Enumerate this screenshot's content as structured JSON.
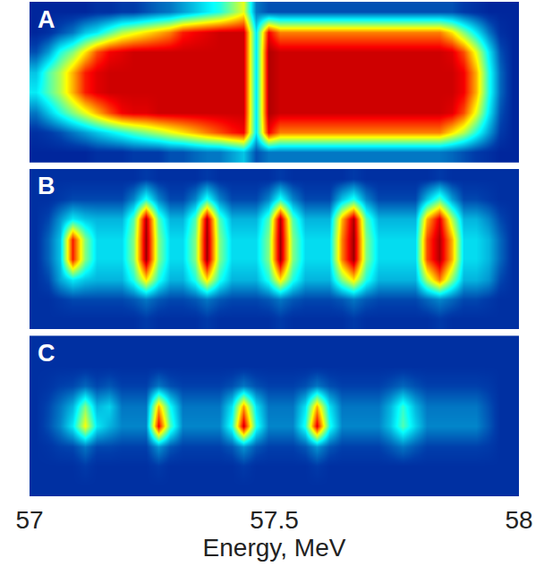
{
  "chart_data": [
    {
      "type": "heatmap",
      "title": "A",
      "x": [
        57.0125,
        57.0375,
        57.0625,
        57.0875,
        57.1125,
        57.1375,
        57.1625,
        57.1875,
        57.2125,
        57.2375,
        57.2625,
        57.2875,
        57.3125,
        57.3375,
        57.3625,
        57.3875,
        57.4125,
        57.4375,
        57.4625,
        57.4875,
        57.5125,
        57.5375,
        57.5625,
        57.5875,
        57.6125,
        57.6375,
        57.6625,
        57.6875,
        57.7125,
        57.7375,
        57.7625,
        57.7875,
        57.8125,
        57.8375,
        57.8625,
        57.8875,
        57.9125,
        57.9375,
        57.9625,
        57.9875
      ],
      "y": [
        0,
        1,
        2,
        3,
        4,
        5,
        6,
        7
      ],
      "z": [
        [
          8,
          10,
          20,
          35,
          30,
          15,
          8,
          8
        ],
        [
          8,
          12,
          30,
          45,
          45,
          25,
          10,
          8
        ],
        [
          8,
          15,
          40,
          55,
          55,
          40,
          15,
          8
        ],
        [
          8,
          20,
          50,
          70,
          70,
          50,
          20,
          8
        ],
        [
          8,
          25,
          60,
          85,
          85,
          65,
          30,
          8
        ],
        [
          10,
          30,
          70,
          90,
          90,
          80,
          35,
          10
        ],
        [
          10,
          35,
          80,
          92,
          92,
          88,
          45,
          10
        ],
        [
          10,
          40,
          88,
          92,
          92,
          90,
          55,
          12
        ],
        [
          12,
          45,
          90,
          92,
          92,
          92,
          60,
          12
        ],
        [
          12,
          50,
          90,
          92,
          92,
          92,
          65,
          15
        ],
        [
          12,
          55,
          92,
          92,
          92,
          92,
          70,
          18
        ],
        [
          15,
          60,
          92,
          92,
          92,
          92,
          75,
          20
        ],
        [
          15,
          65,
          92,
          92,
          92,
          92,
          85,
          25
        ],
        [
          18,
          70,
          92,
          92,
          92,
          92,
          88,
          30
        ],
        [
          20,
          75,
          92,
          92,
          92,
          92,
          90,
          35
        ],
        [
          20,
          80,
          92,
          92,
          92,
          92,
          92,
          40
        ],
        [
          25,
          85,
          92,
          92,
          92,
          92,
          92,
          50
        ],
        [
          30,
          88,
          92,
          92,
          92,
          92,
          92,
          60
        ],
        [
          15,
          35,
          35,
          35,
          35,
          35,
          35,
          20
        ],
        [
          20,
          88,
          95,
          95,
          95,
          95,
          88,
          15
        ],
        [
          20,
          75,
          92,
          92,
          92,
          92,
          75,
          15
        ],
        [
          20,
          75,
          92,
          92,
          92,
          92,
          75,
          15
        ],
        [
          20,
          75,
          92,
          92,
          92,
          92,
          75,
          15
        ],
        [
          20,
          75,
          92,
          92,
          92,
          92,
          75,
          15
        ],
        [
          20,
          75,
          92,
          92,
          92,
          92,
          75,
          15
        ],
        [
          20,
          75,
          92,
          92,
          92,
          92,
          75,
          15
        ],
        [
          20,
          75,
          92,
          92,
          92,
          92,
          75,
          15
        ],
        [
          20,
          75,
          92,
          92,
          92,
          92,
          75,
          15
        ],
        [
          20,
          75,
          92,
          92,
          92,
          92,
          75,
          15
        ],
        [
          20,
          75,
          92,
          92,
          92,
          92,
          75,
          15
        ],
        [
          20,
          75,
          92,
          92,
          92,
          92,
          75,
          15
        ],
        [
          20,
          75,
          92,
          92,
          92,
          92,
          75,
          15
        ],
        [
          20,
          75,
          92,
          92,
          92,
          92,
          75,
          15
        ],
        [
          20,
          75,
          92,
          92,
          92,
          92,
          75,
          15
        ],
        [
          18,
          65,
          90,
          92,
          92,
          90,
          65,
          15
        ],
        [
          15,
          55,
          80,
          88,
          88,
          80,
          50,
          12
        ],
        [
          12,
          40,
          60,
          70,
          70,
          60,
          35,
          10
        ],
        [
          10,
          25,
          35,
          40,
          40,
          35,
          20,
          8
        ],
        [
          8,
          12,
          15,
          18,
          18,
          15,
          10,
          8
        ],
        [
          8,
          8,
          8,
          8,
          8,
          8,
          8,
          8
        ]
      ],
      "zlim": [
        0,
        100
      ],
      "xlim": [
        57,
        58
      ],
      "ylim": [
        -0.5,
        7.5
      ],
      "tick_labels": false
    },
    {
      "type": "heatmap",
      "title": "B",
      "x": [
        57.0125,
        57.0375,
        57.0625,
        57.0875,
        57.1125,
        57.1375,
        57.1625,
        57.1875,
        57.2125,
        57.2375,
        57.2625,
        57.2875,
        57.3125,
        57.3375,
        57.3625,
        57.3875,
        57.4125,
        57.4375,
        57.4625,
        57.4875,
        57.5125,
        57.5375,
        57.5625,
        57.5875,
        57.6125,
        57.6375,
        57.6625,
        57.6875,
        57.7125,
        57.7375,
        57.7625,
        57.7875,
        57.8125,
        57.8375,
        57.8625,
        57.8875,
        57.9125,
        57.9375,
        57.9625,
        57.9875
      ],
      "y": [
        0,
        1,
        2,
        3,
        4,
        5,
        6,
        7
      ],
      "z": [
        [
          10,
          10,
          10,
          10,
          10,
          10,
          10,
          10
        ],
        [
          10,
          10,
          14,
          18,
          18,
          14,
          10,
          10
        ],
        [
          10,
          12,
          26,
          30,
          30,
          24,
          12,
          10
        ],
        [
          10,
          14,
          35,
          85,
          85,
          35,
          14,
          10
        ],
        [
          10,
          14,
          30,
          50,
          50,
          30,
          14,
          10
        ],
        [
          10,
          14,
          28,
          33,
          33,
          28,
          14,
          10
        ],
        [
          10,
          14,
          28,
          33,
          33,
          28,
          14,
          10
        ],
        [
          10,
          14,
          28,
          33,
          33,
          28,
          14,
          10
        ],
        [
          10,
          16,
          40,
          50,
          50,
          45,
          22,
          10
        ],
        [
          12,
          20,
          65,
          97,
          97,
          95,
          40,
          12
        ],
        [
          10,
          16,
          40,
          50,
          50,
          45,
          22,
          10
        ],
        [
          10,
          14,
          28,
          33,
          33,
          28,
          14,
          10
        ],
        [
          10,
          14,
          28,
          33,
          33,
          28,
          14,
          10
        ],
        [
          10,
          16,
          40,
          50,
          50,
          45,
          22,
          10
        ],
        [
          12,
          20,
          65,
          97,
          97,
          95,
          40,
          12
        ],
        [
          10,
          16,
          40,
          50,
          50,
          45,
          22,
          10
        ],
        [
          10,
          14,
          28,
          33,
          33,
          28,
          14,
          10
        ],
        [
          10,
          14,
          28,
          33,
          33,
          28,
          14,
          10
        ],
        [
          10,
          14,
          28,
          33,
          33,
          28,
          14,
          10
        ],
        [
          10,
          16,
          40,
          50,
          50,
          45,
          22,
          10
        ],
        [
          12,
          20,
          65,
          97,
          97,
          95,
          40,
          12
        ],
        [
          10,
          16,
          40,
          50,
          50,
          45,
          22,
          10
        ],
        [
          10,
          14,
          28,
          33,
          33,
          28,
          14,
          10
        ],
        [
          10,
          14,
          28,
          33,
          33,
          28,
          14,
          10
        ],
        [
          10,
          14,
          28,
          33,
          33,
          28,
          14,
          10
        ],
        [
          10,
          16,
          50,
          75,
          75,
          70,
          30,
          10
        ],
        [
          12,
          20,
          65,
          97,
          97,
          95,
          40,
          12
        ],
        [
          10,
          16,
          40,
          50,
          50,
          45,
          22,
          10
        ],
        [
          10,
          14,
          28,
          33,
          33,
          28,
          14,
          10
        ],
        [
          10,
          14,
          28,
          33,
          33,
          28,
          14,
          10
        ],
        [
          10,
          14,
          28,
          33,
          33,
          28,
          14,
          10
        ],
        [
          10,
          14,
          28,
          33,
          33,
          28,
          14,
          10
        ],
        [
          10,
          18,
          55,
          80,
          80,
          70,
          30,
          10
        ],
        [
          12,
          22,
          75,
          95,
          95,
          90,
          45,
          12
        ],
        [
          10,
          18,
          50,
          70,
          70,
          55,
          25,
          10
        ],
        [
          10,
          14,
          28,
          33,
          33,
          28,
          14,
          10
        ],
        [
          10,
          14,
          28,
          33,
          33,
          28,
          14,
          10
        ],
        [
          10,
          12,
          24,
          28,
          28,
          22,
          12,
          10
        ],
        [
          10,
          10,
          14,
          18,
          18,
          14,
          10,
          10
        ],
        [
          10,
          10,
          10,
          10,
          10,
          10,
          10,
          10
        ]
      ],
      "zlim": [
        0,
        100
      ],
      "xlim": [
        57,
        58
      ],
      "ylim": [
        -0.5,
        7.5
      ],
      "tick_labels": false
    },
    {
      "type": "heatmap",
      "title": "C",
      "xlabel": "Energy, MeV",
      "x": [
        57.0125,
        57.0375,
        57.0625,
        57.0875,
        57.1125,
        57.1375,
        57.1625,
        57.1875,
        57.2125,
        57.2375,
        57.2625,
        57.2875,
        57.3125,
        57.3375,
        57.3625,
        57.3875,
        57.4125,
        57.4375,
        57.4625,
        57.4875,
        57.5125,
        57.5375,
        57.5625,
        57.5875,
        57.6125,
        57.6375,
        57.6625,
        57.6875,
        57.7125,
        57.7375,
        57.7625,
        57.7875,
        57.8125,
        57.8375,
        57.8625,
        57.8875,
        57.9125,
        57.9375,
        57.9625,
        57.9875
      ],
      "y": [
        0,
        1,
        2,
        3,
        4,
        5,
        6,
        7
      ],
      "z": [
        [
          10,
          10,
          10,
          10,
          10,
          10,
          10,
          10
        ],
        [
          10,
          10,
          11,
          15,
          14,
          11,
          10,
          10
        ],
        [
          10,
          10,
          13,
          22,
          20,
          13,
          10,
          10
        ],
        [
          10,
          10,
          14,
          35,
          28,
          14,
          10,
          10
        ],
        [
          10,
          12,
          20,
          62,
          50,
          18,
          10,
          10
        ],
        [
          10,
          10,
          14,
          35,
          28,
          14,
          10,
          10
        ],
        [
          10,
          10,
          14,
          28,
          32,
          16,
          10,
          10
        ],
        [
          10,
          10,
          13,
          22,
          20,
          13,
          10,
          10
        ],
        [
          10,
          10,
          13,
          22,
          20,
          13,
          10,
          10
        ],
        [
          10,
          10,
          13,
          22,
          20,
          13,
          10,
          10
        ],
        [
          10,
          12,
          24,
          88,
          70,
          20,
          10,
          10
        ],
        [
          10,
          10,
          16,
          45,
          38,
          15,
          10,
          10
        ],
        [
          10,
          10,
          13,
          22,
          20,
          13,
          10,
          10
        ],
        [
          10,
          10,
          13,
          22,
          20,
          13,
          10,
          10
        ],
        [
          10,
          10,
          13,
          22,
          20,
          13,
          10,
          10
        ],
        [
          10,
          10,
          13,
          22,
          20,
          13,
          10,
          10
        ],
        [
          10,
          10,
          16,
          40,
          34,
          15,
          10,
          10
        ],
        [
          10,
          12,
          24,
          92,
          72,
          20,
          10,
          10
        ],
        [
          10,
          10,
          16,
          40,
          34,
          15,
          10,
          10
        ],
        [
          10,
          10,
          13,
          22,
          20,
          13,
          10,
          10
        ],
        [
          10,
          10,
          13,
          22,
          20,
          13,
          10,
          10
        ],
        [
          10,
          10,
          13,
          22,
          20,
          13,
          10,
          10
        ],
        [
          10,
          10,
          16,
          40,
          34,
          15,
          10,
          10
        ],
        [
          10,
          12,
          24,
          90,
          70,
          20,
          10,
          10
        ],
        [
          10,
          10,
          16,
          40,
          34,
          15,
          10,
          10
        ],
        [
          10,
          10,
          13,
          22,
          20,
          13,
          10,
          10
        ],
        [
          10,
          10,
          13,
          22,
          20,
          13,
          10,
          10
        ],
        [
          10,
          10,
          13,
          22,
          20,
          13,
          10,
          10
        ],
        [
          10,
          10,
          13,
          22,
          20,
          13,
          10,
          10
        ],
        [
          10,
          10,
          16,
          30,
          28,
          15,
          10,
          10
        ],
        [
          10,
          10,
          20,
          45,
          42,
          18,
          10,
          10
        ],
        [
          10,
          10,
          16,
          32,
          28,
          15,
          10,
          10
        ],
        [
          10,
          10,
          13,
          22,
          20,
          13,
          10,
          10
        ],
        [
          10,
          10,
          13,
          22,
          20,
          13,
          10,
          10
        ],
        [
          10,
          10,
          13,
          22,
          20,
          13,
          10,
          10
        ],
        [
          10,
          10,
          13,
          22,
          20,
          13,
          10,
          10
        ],
        [
          10,
          10,
          13,
          22,
          20,
          13,
          10,
          10
        ],
        [
          10,
          10,
          12,
          16,
          15,
          12,
          10,
          10
        ],
        [
          10,
          10,
          10,
          10,
          10,
          10,
          10,
          10
        ],
        [
          10,
          10,
          10,
          10,
          10,
          10,
          10,
          10
        ]
      ],
      "zlim": [
        0,
        100
      ],
      "xlim": [
        57,
        58
      ],
      "xticks": [
        57,
        57.5,
        58
      ],
      "ylim": [
        -0.5,
        7.5
      ],
      "tick_labels": "x"
    }
  ]
}
